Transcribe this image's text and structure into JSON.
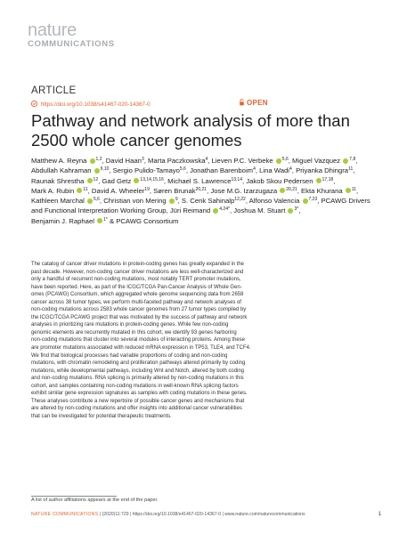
{
  "journal": {
    "logo_line1": "nature",
    "logo_line2": "COMMUNICATIONS"
  },
  "article_label": "ARTICLE",
  "doi_text": "https://doi.org/10.1038/s41467-020-14367-0",
  "open_label": "OPEN",
  "title": "Pathway and network analysis of more than 2500 whole cancer genomes",
  "authors_lines": [
    "Matthew A. Reyna 1,2, David Haan 3, Marta Paczkowska 4, Lieven P.C. Verbeke 5,6, Miguel Vazquez 7,8,",
    "Abdullah Kahraman 9,10, Sergio Pulido-Tamayo 5,6, Jonathan Barenboim 4, Lina Wadi 4, Priyanka Dhingra 11,",
    "Raunak Shrestha 12, Gad Getz 13,14,15,16, Michael S. Lawrence 13,14, Jakob Skou Pedersen 17,18,",
    "Mark A. Rubin 11, David A. Wheeler 19, Søren Brunak 20,21, Jose M.G. Izarzugaza 20,21, Ekta Khurana 11,",
    "Kathleen Marchal 5,6, Christian von Mering 9, S. Cenk Sahinalp 12,22, Alfonso Valencia 7,23, PCAWG Drivers",
    "and Functional Interpretation Working Group, Jüri Reimand 4,24*, Joshua M. Stuart 3*,",
    "Benjamin J. Raphael 1* & PCAWG Consortium"
  ],
  "abstract": [
    "The catalog of cancer driver mutations in protein-coding genes has greatly expanded in the",
    "past decade. However, non-coding cancer driver mutations are less well-characterized and",
    "only a handful of recurrent non-coding mutations, most notably TERT promoter mutations,",
    "have been reported. Here, as part of the ICGC/TCGA Pan-Cancer Analysis of Whole Gen-",
    "omes (PCAWG) Consortium, which aggregated whole genome sequencing data from 2658",
    "cancer across 38 tumor types, we perform multi-faceted pathway and network analyses of",
    "non-coding mutations across 2583 whole cancer genomes from 27 tumor types compiled by",
    "the ICGC/TCGA PCAWG project that was motivated by the success of pathway and network",
    "analyses in prioritizing rare mutations in protein-coding genes. While few non-coding",
    "genomic elements are recurrently mutated in this cohort, we identify 93 genes harboring",
    "non-coding mutations that cluster into several modules of interacting proteins. Among these",
    "are promoter mutations associated with reduced mRNA expression in TP53, TLE4, and TCF4.",
    "We find that biological processes had variable proportions of coding and non-coding",
    "mutations, with chromatin remodeling and proliferation pathways altered primarily by coding",
    "mutations, while developmental pathways, including Wnt and Notch, altered by both coding",
    "and non-coding mutations. RNA splicing is primarily altered by non-coding mutations in this",
    "cohort, and samples containing non-coding mutations in well-known RNA splicing factors",
    "exhibit similar gene expression signatures as samples with coding mutations in these genes.",
    "These analyses contribute a new repertoire of possible cancer genes and mechanisms that",
    "are altered by non-coding mutations and offer insights into additional cancer vulnerabilities",
    "that can be investigated for potential therapeutic treatments."
  ],
  "footnote": "A list of author affiliations appears at the end of the paper.",
  "footer": {
    "journal": "NATURE COMMUNICATIONS",
    "citation": "| (2020)11:729 | https://doi.org/10.1038/s41467-020-14367-0 | www.nature.com/naturecommunications",
    "page": "1"
  },
  "colors": {
    "accent": "#e8632b",
    "orcid": "#a6ce39",
    "logo_gray": "#b5b9bd"
  }
}
